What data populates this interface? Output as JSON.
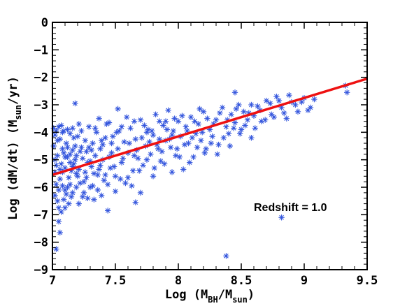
{
  "chart_data": {
    "type": "scatter",
    "xlabel": {
      "prefix": "Log (M",
      "sub1": "BH",
      "mid": "/M",
      "sub2": "sun",
      "suffix": ")"
    },
    "ylabel": {
      "prefix": "Log (dM/dt)  (M",
      "sub": "sun",
      "suffix": "/yr)"
    },
    "xlim": [
      7,
      9.5
    ],
    "ylim": [
      -9,
      0
    ],
    "xticks": [
      7,
      7.5,
      8,
      8.5,
      9,
      9.5
    ],
    "xtick_labels": [
      "7",
      "7.5",
      "8",
      "8.5",
      "9",
      "9.5"
    ],
    "yticks": [
      0,
      -1,
      -2,
      -3,
      -4,
      -5,
      -6,
      -7,
      -8,
      -9
    ],
    "ytick_labels": [
      "0",
      "−1",
      "−2",
      "−3",
      "−4",
      "−5",
      "−6",
      "−7",
      "−8",
      "−9"
    ],
    "annotation": "Redshift = 1.0",
    "grid": false,
    "marker_color": "#3355dd",
    "line_color": "#ee1111",
    "fit_line": {
      "x": [
        7,
        9.5
      ],
      "y": [
        -5.55,
        -2.05
      ]
    },
    "points": [
      [
        7.02,
        -4.1
      ],
      [
        7.05,
        -3.8
      ],
      [
        7.08,
        -4.6
      ],
      [
        7.03,
        -5.2
      ],
      [
        7.06,
        -5.7
      ],
      [
        7.1,
        -6.1
      ],
      [
        7.04,
        -6.5
      ],
      [
        7.12,
        -4.9
      ],
      [
        7.15,
        -5.4
      ],
      [
        7.09,
        -3.95
      ],
      [
        7.11,
        -4.4
      ],
      [
        7.14,
        -5.9
      ],
      [
        7.07,
        -6.9
      ],
      [
        7.05,
        -7.25
      ],
      [
        7.13,
        -6.6
      ],
      [
        7.17,
        -4.2
      ],
      [
        7.18,
        -5.0
      ],
      [
        7.2,
        -5.6
      ],
      [
        7.16,
        -6.2
      ],
      [
        7.22,
        -4.7
      ],
      [
        7.01,
        -4.5
      ],
      [
        7.03,
        -5.9
      ],
      [
        7.06,
        -4.25
      ],
      [
        7.08,
        -5.45
      ],
      [
        7.1,
        -6.75
      ],
      [
        7.02,
        -6.3
      ],
      [
        7.04,
        -4.85
      ],
      [
        7.07,
        -5.15
      ],
      [
        7.09,
        -6.45
      ],
      [
        7.12,
        -3.9
      ],
      [
        7.14,
        -4.05
      ],
      [
        7.16,
        -5.25
      ],
      [
        7.19,
        -6.0
      ],
      [
        7.21,
        -5.35
      ],
      [
        7.23,
        -4.55
      ],
      [
        7.25,
        -5.8
      ],
      [
        7.26,
        -4.3
      ],
      [
        7.28,
        -6.4
      ],
      [
        7.3,
        -5.05
      ],
      [
        7.31,
        -4.65
      ],
      [
        7.33,
        -5.5
      ],
      [
        7.35,
        -4.0
      ],
      [
        7.36,
        -6.1
      ],
      [
        7.38,
        -5.2
      ],
      [
        7.4,
        -4.45
      ],
      [
        7.41,
        -5.75
      ],
      [
        7.43,
        -3.7
      ],
      [
        7.45,
        -4.9
      ],
      [
        7.46,
        -5.3
      ],
      [
        7.48,
        -4.15
      ],
      [
        7.5,
        -5.6
      ],
      [
        7.52,
        -4.6
      ],
      [
        7.53,
        -3.95
      ],
      [
        7.55,
        -5.1
      ],
      [
        7.57,
        -4.35
      ],
      [
        7.58,
        -5.85
      ],
      [
        7.6,
        -4.75
      ],
      [
        7.62,
        -3.85
      ],
      [
        7.64,
        -5.4
      ],
      [
        7.66,
        -4.25
      ],
      [
        7.68,
        -4.95
      ],
      [
        7.7,
        -3.55
      ],
      [
        7.72,
        -5.2
      ],
      [
        7.74,
        -4.5
      ],
      [
        7.76,
        -3.9
      ],
      [
        7.78,
        -4.8
      ],
      [
        7.8,
        -4.1
      ],
      [
        7.82,
        -3.35
      ],
      [
        7.84,
        -4.6
      ],
      [
        7.86,
        -5.05
      ],
      [
        7.88,
        -3.75
      ],
      [
        7.9,
        -4.3
      ],
      [
        7.92,
        -3.2
      ],
      [
        7.94,
        -4.55
      ],
      [
        7.96,
        -3.95
      ],
      [
        7.98,
        -4.85
      ],
      [
        8.0,
        -3.6
      ],
      [
        8.02,
        -4.15
      ],
      [
        8.04,
        -5.35
      ],
      [
        8.06,
        -3.8
      ],
      [
        8.08,
        -4.4
      ],
      [
        8.1,
        -3.45
      ],
      [
        8.12,
        -4.9
      ],
      [
        8.14,
        -4.05
      ],
      [
        8.16,
        -3.7
      ],
      [
        8.18,
        -4.3
      ],
      [
        8.2,
        -3.25
      ],
      [
        8.22,
        -4.6
      ],
      [
        8.25,
        -3.9
      ],
      [
        8.27,
        -4.15
      ],
      [
        8.3,
        -3.55
      ],
      [
        8.32,
        -4.45
      ],
      [
        8.35,
        -3.1
      ],
      [
        8.38,
        -3.8
      ],
      [
        8.4,
        -4.05
      ],
      [
        8.42,
        -3.35
      ],
      [
        8.45,
        -3.65
      ],
      [
        8.48,
        -3.0
      ],
      [
        8.5,
        -3.9
      ],
      [
        8.52,
        -3.25
      ],
      [
        8.55,
        -3.55
      ],
      [
        8.58,
        -4.2
      ],
      [
        8.6,
        -3.4
      ],
      [
        8.63,
        -3.05
      ],
      [
        8.66,
        -3.6
      ],
      [
        8.7,
        -2.85
      ],
      [
        8.74,
        -3.35
      ],
      [
        8.78,
        -2.7
      ],
      [
        8.82,
        -3.1
      ],
      [
        8.86,
        -3.5
      ],
      [
        8.9,
        -2.9
      ],
      [
        8.95,
        -3.25
      ],
      [
        9.0,
        -2.75
      ],
      [
        9.05,
        -3.1
      ],
      [
        9.33,
        -2.3
      ],
      [
        9.34,
        -2.55
      ],
      [
        7.06,
        -7.65
      ],
      [
        7.03,
        -8.25
      ],
      [
        8.38,
        -8.5
      ],
      [
        8.82,
        -7.1
      ],
      [
        7.44,
        -6.85
      ],
      [
        7.66,
        -6.55
      ],
      [
        7.18,
        -2.95
      ],
      [
        7.52,
        -3.15
      ],
      [
        8.45,
        -2.55
      ],
      [
        8.58,
        -3.0
      ],
      [
        7.01,
        -3.85
      ],
      [
        7.02,
        -5.45
      ],
      [
        7.04,
        -4.3
      ],
      [
        7.05,
        -6.1
      ],
      [
        7.07,
        -3.75
      ],
      [
        7.08,
        -5.95
      ],
      [
        7.09,
        -4.75
      ],
      [
        7.1,
        -5.3
      ],
      [
        7.11,
        -6.25
      ],
      [
        7.12,
        -4.55
      ],
      [
        7.13,
        -5.65
      ],
      [
        7.14,
        -4.8
      ],
      [
        7.15,
        -6.35
      ],
      [
        7.16,
        -3.85
      ],
      [
        7.17,
        -5.15
      ],
      [
        7.18,
        -4.5
      ],
      [
        7.19,
        -5.5
      ],
      [
        7.2,
        -4.15
      ],
      [
        7.21,
        -6.6
      ],
      [
        7.22,
        -5.85
      ],
      [
        7.23,
        -3.95
      ],
      [
        7.24,
        -4.95
      ],
      [
        7.25,
        -6.2
      ],
      [
        7.26,
        -5.45
      ],
      [
        7.27,
        -4.7
      ],
      [
        7.28,
        -5.1
      ],
      [
        7.29,
        -3.8
      ],
      [
        7.3,
        -6.0
      ],
      [
        7.31,
        -5.25
      ],
      [
        7.32,
        -4.4
      ],
      [
        7.33,
        -6.45
      ],
      [
        7.34,
        -4.85
      ],
      [
        7.36,
        -5.55
      ],
      [
        7.37,
        -3.5
      ],
      [
        7.38,
        -4.6
      ],
      [
        7.39,
        -6.3
      ],
      [
        7.4,
        -5.0
      ],
      [
        7.42,
        -4.2
      ],
      [
        7.44,
        -5.9
      ],
      [
        7.45,
        -3.65
      ],
      [
        7.47,
        -4.75
      ],
      [
        7.49,
        -5.25
      ],
      [
        7.51,
        -4.0
      ],
      [
        7.54,
        -5.7
      ],
      [
        7.56,
        -4.95
      ],
      [
        7.59,
        -3.45
      ],
      [
        7.61,
        -4.4
      ],
      [
        7.63,
        -5.95
      ],
      [
        7.65,
        -3.6
      ],
      [
        7.67,
        -4.65
      ],
      [
        7.69,
        -5.4
      ],
      [
        7.71,
        -4.2
      ],
      [
        7.73,
        -3.75
      ],
      [
        7.75,
        -5.0
      ],
      [
        7.77,
        -4.35
      ],
      [
        7.79,
        -3.95
      ],
      [
        7.81,
        -5.3
      ],
      [
        7.83,
        -4.45
      ],
      [
        7.85,
        -3.6
      ],
      [
        7.87,
        -4.7
      ],
      [
        7.89,
        -5.15
      ],
      [
        7.91,
        -3.9
      ],
      [
        7.93,
        -4.25
      ],
      [
        7.95,
        -5.45
      ],
      [
        7.97,
        -3.5
      ],
      [
        7.99,
        -4.6
      ],
      [
        8.01,
        -4.9
      ],
      [
        8.03,
        -3.4
      ],
      [
        8.05,
        -4.45
      ],
      [
        8.07,
        -3.95
      ],
      [
        8.09,
        -5.1
      ],
      [
        8.11,
        -4.2
      ],
      [
        8.13,
        -3.6
      ],
      [
        8.15,
        -4.55
      ],
      [
        8.17,
        -3.15
      ],
      [
        8.19,
        -4.0
      ],
      [
        8.21,
        -4.75
      ],
      [
        8.23,
        -3.5
      ],
      [
        8.26,
        -4.4
      ],
      [
        8.28,
        -3.7
      ],
      [
        8.31,
        -4.8
      ],
      [
        8.33,
        -3.3
      ],
      [
        8.36,
        -4.2
      ],
      [
        8.39,
        -3.55
      ],
      [
        8.41,
        -4.5
      ],
      [
        8.44,
        -3.85
      ],
      [
        8.46,
        -3.15
      ],
      [
        8.49,
        -4.05
      ],
      [
        8.53,
        -3.75
      ],
      [
        8.56,
        -3.3
      ],
      [
        8.61,
        -3.85
      ],
      [
        8.65,
        -3.2
      ],
      [
        8.69,
        -3.55
      ],
      [
        8.73,
        -2.95
      ],
      [
        8.76,
        -3.45
      ],
      [
        8.8,
        -2.85
      ],
      [
        8.84,
        -3.3
      ],
      [
        8.88,
        -2.65
      ],
      [
        8.93,
        -3.0
      ],
      [
        8.98,
        -2.9
      ],
      [
        9.03,
        -3.2
      ],
      [
        9.08,
        -2.8
      ],
      [
        7.02,
        -5.0
      ],
      [
        7.03,
        -3.95
      ],
      [
        7.05,
        -6.75
      ],
      [
        7.06,
        -5.35
      ],
      [
        7.08,
        -4.0
      ],
      [
        7.1,
        -4.9
      ],
      [
        7.12,
        -6.0
      ],
      [
        7.14,
        -5.1
      ],
      [
        7.16,
        -4.65
      ],
      [
        7.19,
        -4.85
      ],
      [
        7.21,
        -3.7
      ],
      [
        7.24,
        -6.35
      ],
      [
        7.27,
        -5.65
      ],
      [
        7.29,
        -4.55
      ],
      [
        7.32,
        -5.95
      ],
      [
        7.34,
        -3.85
      ],
      [
        7.37,
        -5.35
      ],
      [
        7.39,
        -4.3
      ],
      [
        7.42,
        -5.55
      ],
      [
        7.47,
        -4.4
      ],
      [
        7.5,
        -6.15
      ],
      [
        7.55,
        -3.8
      ],
      [
        7.6,
        -5.65
      ],
      [
        7.65,
        -4.85
      ],
      [
        7.7,
        -6.2
      ],
      [
        7.75,
        -4.0
      ],
      [
        7.8,
        -5.6
      ],
      [
        7.85,
        -4.25
      ],
      [
        7.9,
        -3.6
      ],
      [
        7.95,
        -4.1
      ]
    ]
  }
}
